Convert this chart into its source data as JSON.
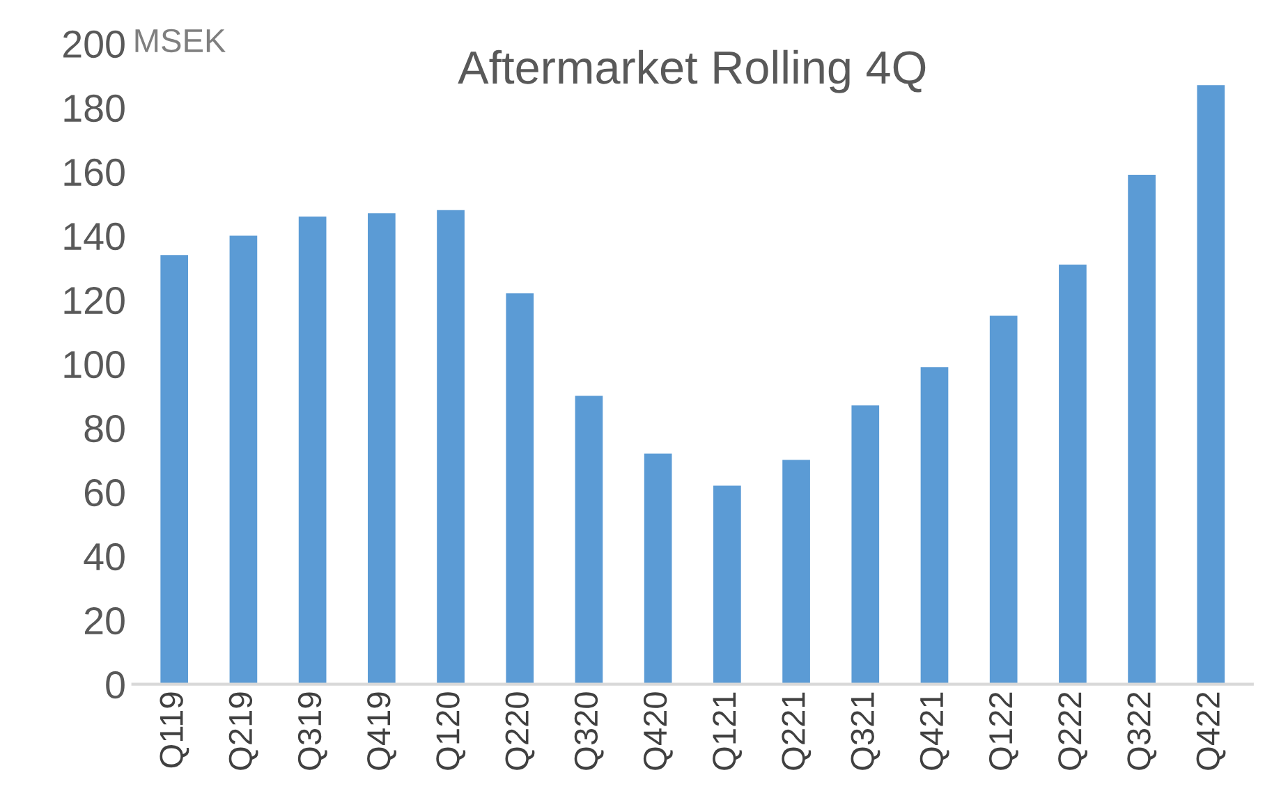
{
  "chart_data": {
    "type": "bar",
    "title": "Aftermarket Rolling 4Q",
    "ylabel": "MSEK",
    "categories": [
      "Q119",
      "Q219",
      "Q319",
      "Q419",
      "Q120",
      "Q220",
      "Q320",
      "Q420",
      "Q121",
      "Q221",
      "Q321",
      "Q421",
      "Q122",
      "Q222",
      "Q322",
      "Q422"
    ],
    "values": [
      134,
      140,
      146,
      147,
      148,
      122,
      90,
      72,
      62,
      70,
      87,
      99,
      115,
      131,
      159,
      187
    ],
    "color": "#5b9bd5",
    "ylim": [
      0,
      200
    ],
    "yticks": [
      0,
      20,
      40,
      60,
      80,
      100,
      120,
      140,
      160,
      180,
      200
    ],
    "grid": false,
    "legend": false
  }
}
